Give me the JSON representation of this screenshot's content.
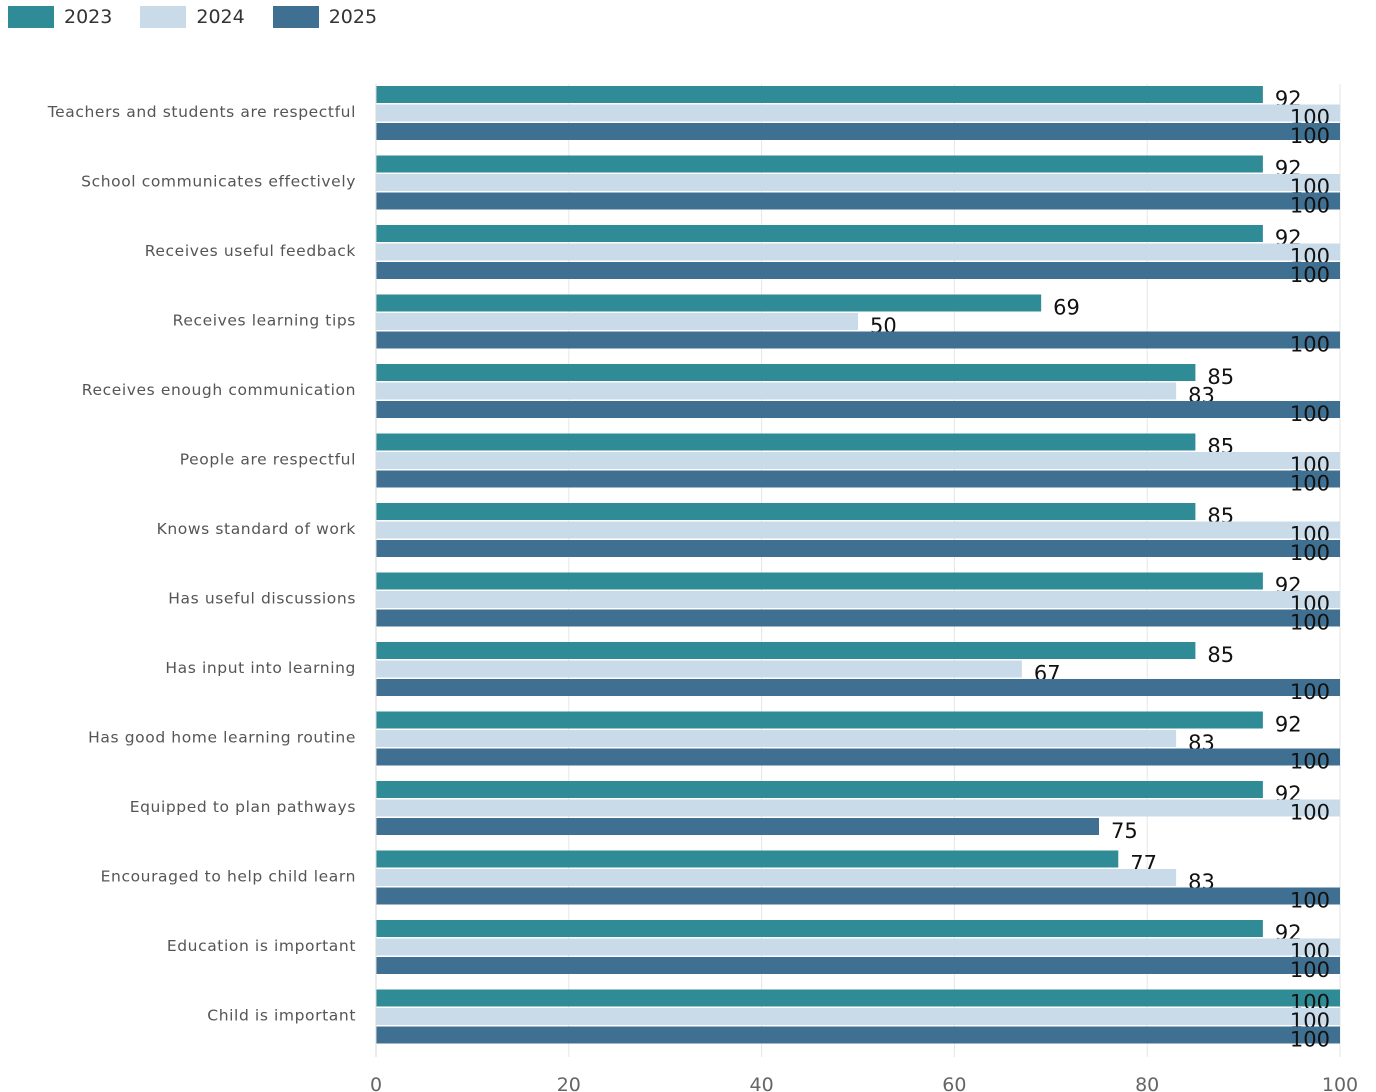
{
  "chart_data": {
    "type": "bar",
    "orientation": "horizontal",
    "categories": [
      "Teachers and students are respectful",
      "School communicates effectively",
      "Receives useful feedback",
      "Receives learning tips",
      "Receives enough communication",
      "People are respectful",
      "Knows standard of work",
      "Has useful discussions",
      "Has input into learning",
      "Has good home learning routine",
      "Equipped to plan pathways",
      "Encouraged to help child learn",
      "Education is important",
      "Child is important"
    ],
    "series": [
      {
        "name": "2023",
        "color": "#2f8b96",
        "values": [
          92,
          92,
          92,
          69,
          85,
          85,
          85,
          92,
          85,
          92,
          92,
          77,
          92,
          100
        ]
      },
      {
        "name": "2024",
        "color": "#c9dbe9",
        "values": [
          100,
          100,
          100,
          50,
          83,
          100,
          100,
          100,
          67,
          83,
          100,
          83,
          100,
          100
        ]
      },
      {
        "name": "2025",
        "color": "#3f6f91",
        "values": [
          100,
          100,
          100,
          100,
          100,
          100,
          100,
          100,
          100,
          100,
          75,
          100,
          100,
          100
        ]
      }
    ],
    "xlim": [
      0,
      100
    ],
    "xticks": [
      "0",
      "20",
      "40",
      "60",
      "80",
      "100"
    ],
    "grid": true,
    "legend_position": "top-left",
    "data_labels": true,
    "title": "",
    "xlabel": "",
    "ylabel": ""
  }
}
